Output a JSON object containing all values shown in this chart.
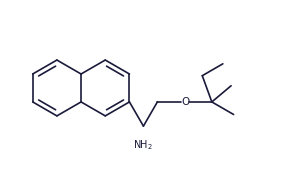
{
  "bg_color": "#ffffff",
  "line_color": "#1a1a3a",
  "nh2_color": "#1a1a3a",
  "o_color": "#1a1a3a",
  "line_width": 1.2,
  "figsize": [
    3.01,
    1.78
  ],
  "dpi": 100
}
